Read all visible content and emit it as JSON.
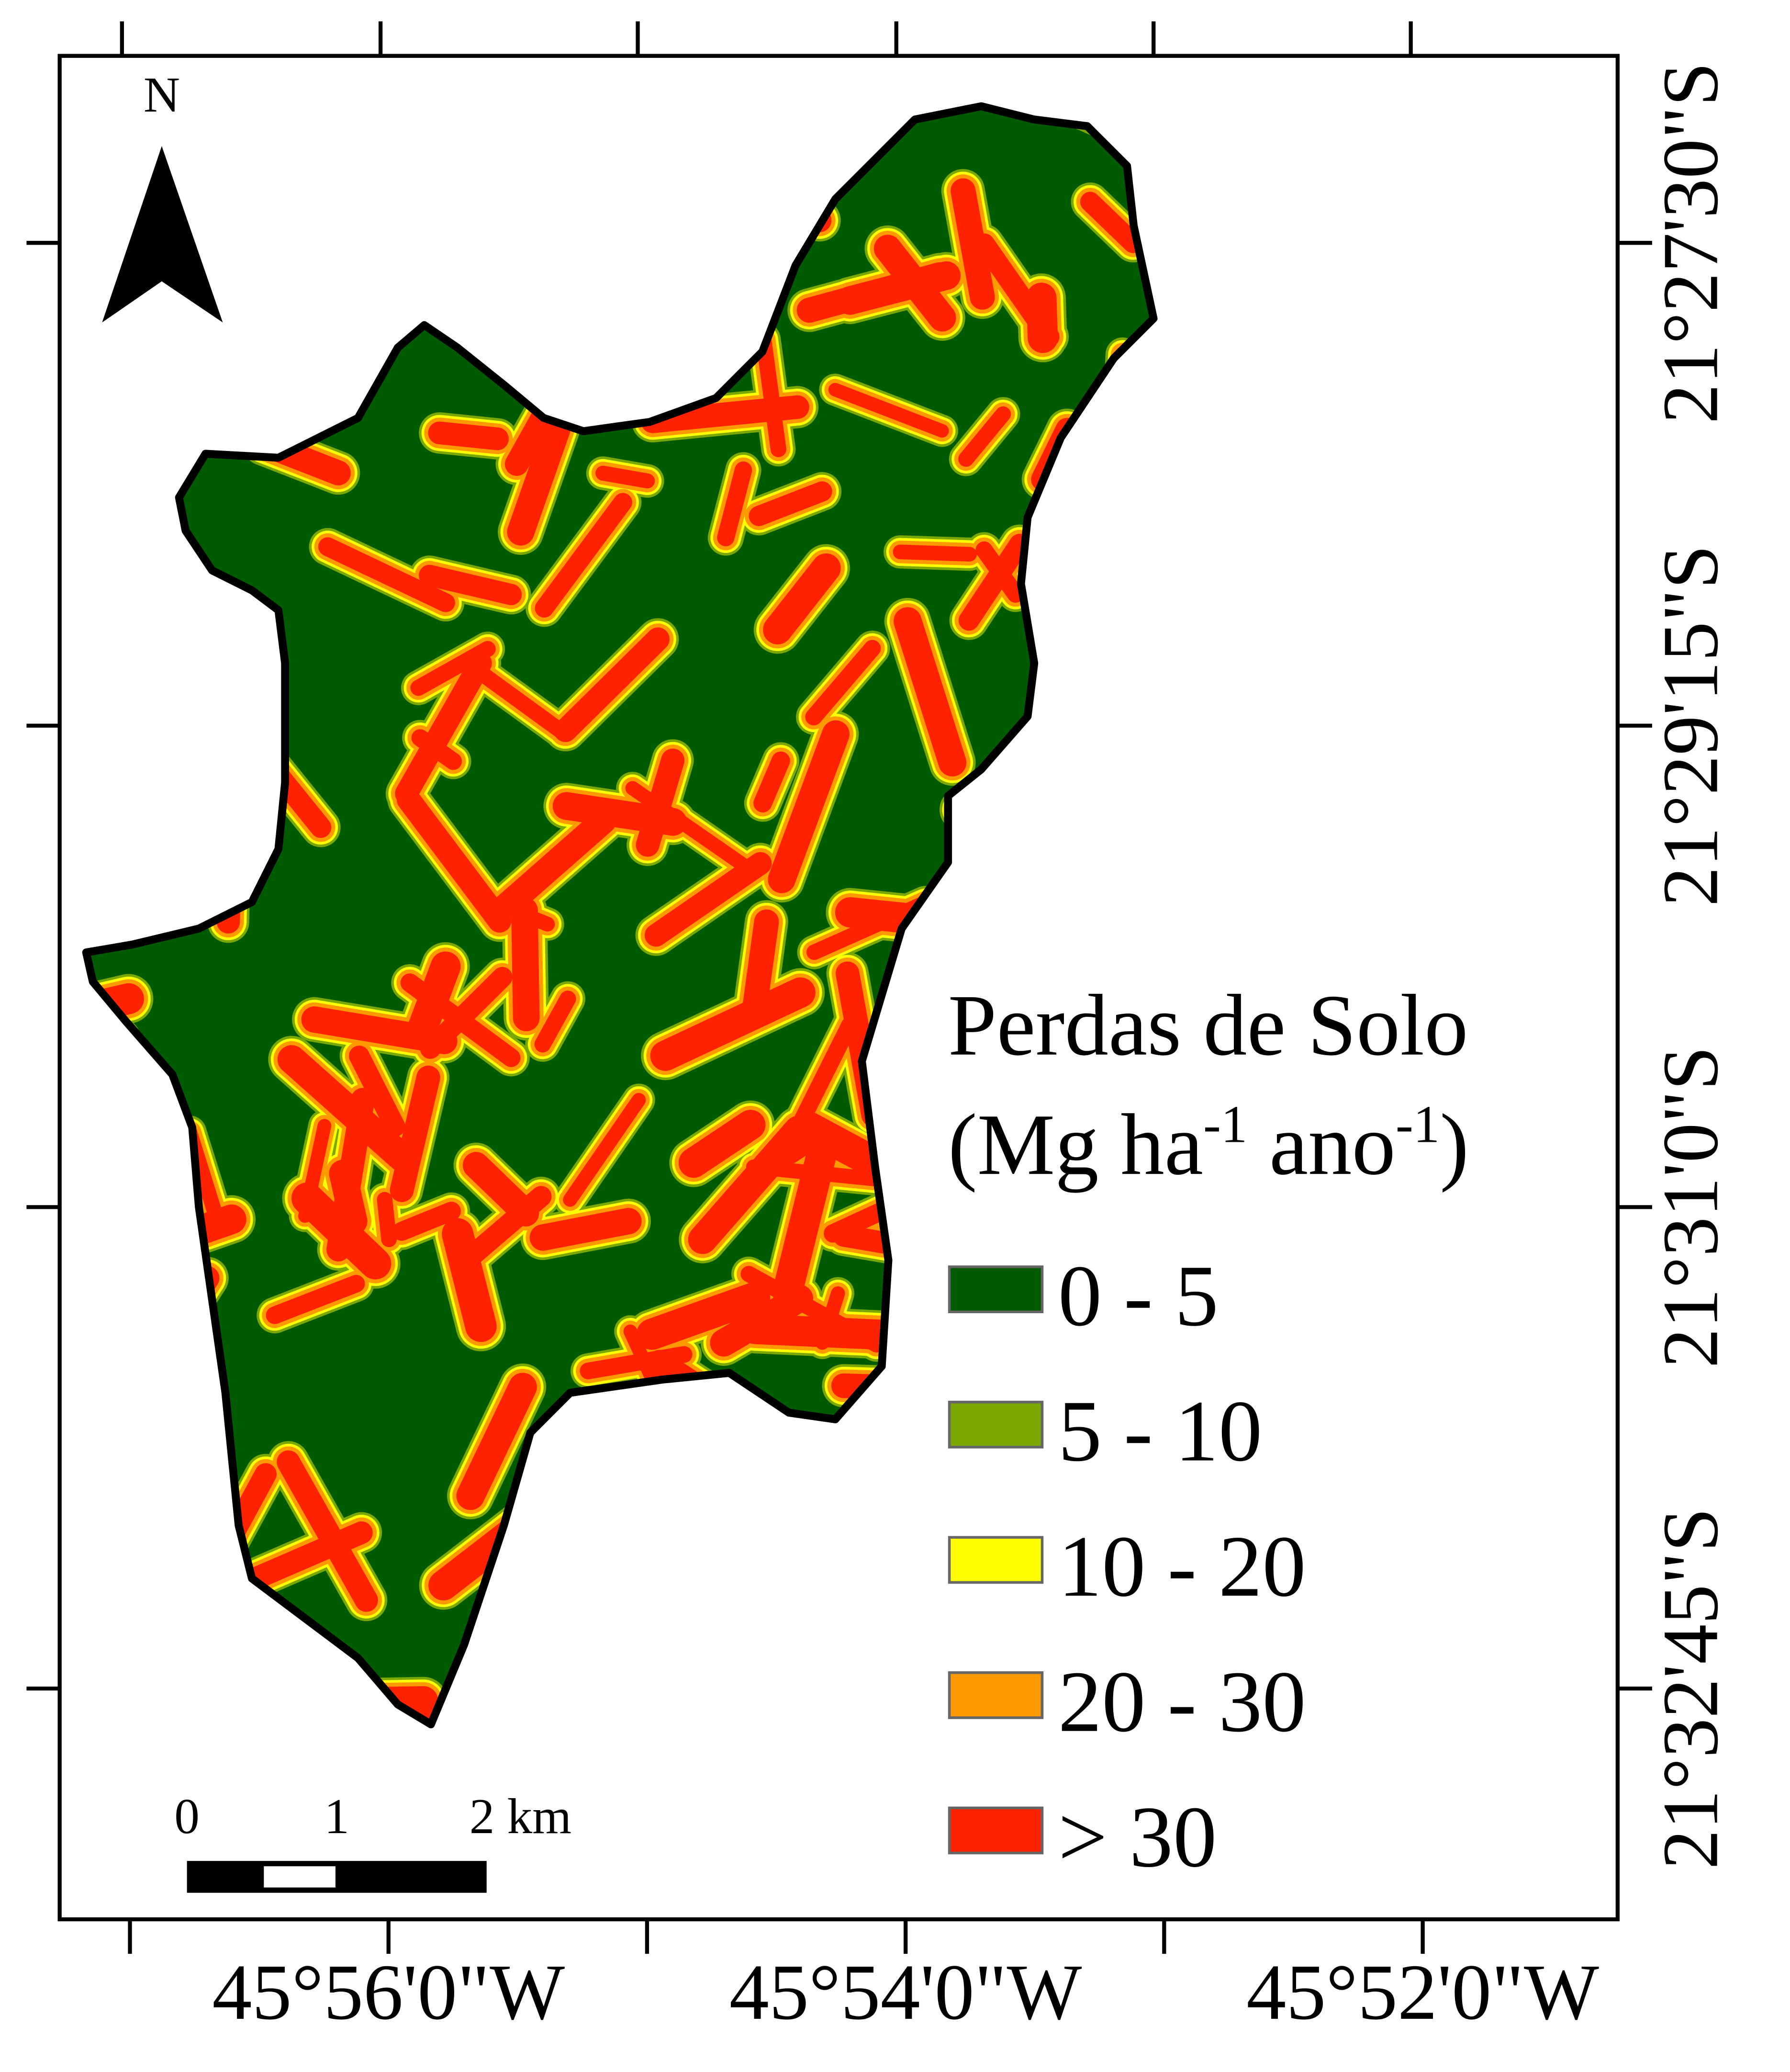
{
  "north_arrow": {
    "label": "N"
  },
  "scale_bar": {
    "labels": [
      "0",
      "1",
      "2 km"
    ]
  },
  "longitude_labels": [
    "45°56'0\"W",
    "45°54'0\"W",
    "45°52'0\"W"
  ],
  "latitude_labels": [
    "21°27'30\"S",
    "21°29'15\"S",
    "21°31'0\"S",
    "21°32'45\"S"
  ],
  "legend": {
    "title_line1": "Perdas de Solo",
    "title_line2_parts": [
      "(Mg ha",
      "-1",
      " ano",
      "-1",
      ")"
    ],
    "items": [
      {
        "label": "0 - 5",
        "color": "#005A00"
      },
      {
        "label": "5 - 10",
        "color": "#7BA800"
      },
      {
        "label": "10 - 20",
        "color": "#FFFF00"
      },
      {
        "label": "20 - 30",
        "color": "#FF9900"
      },
      {
        "label": "> 30",
        "color": "#FF2200"
      }
    ]
  }
}
